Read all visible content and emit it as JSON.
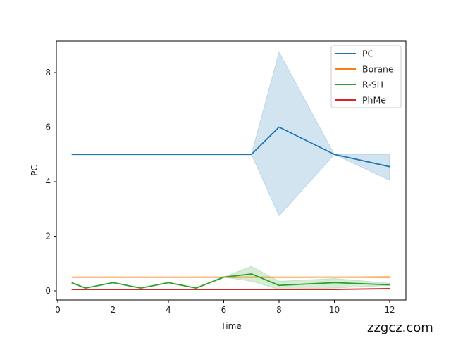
{
  "chart_data": {
    "type": "line",
    "title": "",
    "xlabel": "Time",
    "ylabel": "PC",
    "xlim": [
      -0.05,
      12.55
    ],
    "ylim": [
      -0.33,
      9.15
    ],
    "xticks": [
      0,
      2,
      4,
      6,
      8,
      10,
      12
    ],
    "yticks": [
      0,
      2,
      4,
      6,
      8
    ],
    "grid": false,
    "legend_position": "upper right",
    "series": [
      {
        "name": "PC",
        "color": "#1f77b4",
        "x": [
          0.5,
          7,
          8,
          10,
          12
        ],
        "values": [
          5,
          5,
          6,
          5,
          4.55
        ],
        "ci_lower": [
          5,
          5,
          2.75,
          5,
          4.05
        ],
        "ci_upper": [
          5,
          5,
          8.75,
          5,
          5.0
        ]
      },
      {
        "name": "Borane",
        "color": "#ff7f0e",
        "x": [
          0.5,
          7,
          8,
          10,
          12
        ],
        "values": [
          0.5,
          0.5,
          0.5,
          0.5,
          0.5
        ],
        "ci_lower": [
          0.5,
          0.5,
          0.5,
          0.5,
          0.47
        ],
        "ci_upper": [
          0.5,
          0.5,
          0.5,
          0.5,
          0.54
        ]
      },
      {
        "name": "R-SH",
        "color": "#2ca02c",
        "x": [
          0.5,
          1,
          2,
          3,
          4,
          5,
          6,
          7,
          8,
          10,
          12
        ],
        "values": [
          0.3,
          0.1,
          0.3,
          0.1,
          0.3,
          0.1,
          0.5,
          0.62,
          0.2,
          0.3,
          0.22
        ],
        "ci_lower": [
          0.3,
          0.1,
          0.3,
          0.1,
          0.3,
          0.1,
          0.5,
          0.35,
          0.05,
          0.1,
          0.2
        ],
        "ci_upper": [
          0.3,
          0.1,
          0.3,
          0.1,
          0.3,
          0.1,
          0.5,
          0.9,
          0.35,
          0.45,
          0.28
        ]
      },
      {
        "name": "PhMe",
        "color": "#d62728",
        "x": [
          0.5,
          7,
          8,
          10,
          12
        ],
        "values": [
          0.05,
          0.05,
          0.05,
          0.05,
          0.08
        ],
        "ci_lower": [
          0.05,
          0.05,
          0.05,
          0.05,
          0.06
        ],
        "ci_upper": [
          0.05,
          0.05,
          0.05,
          0.05,
          0.1
        ]
      }
    ]
  },
  "watermark": "zzgcz.com"
}
